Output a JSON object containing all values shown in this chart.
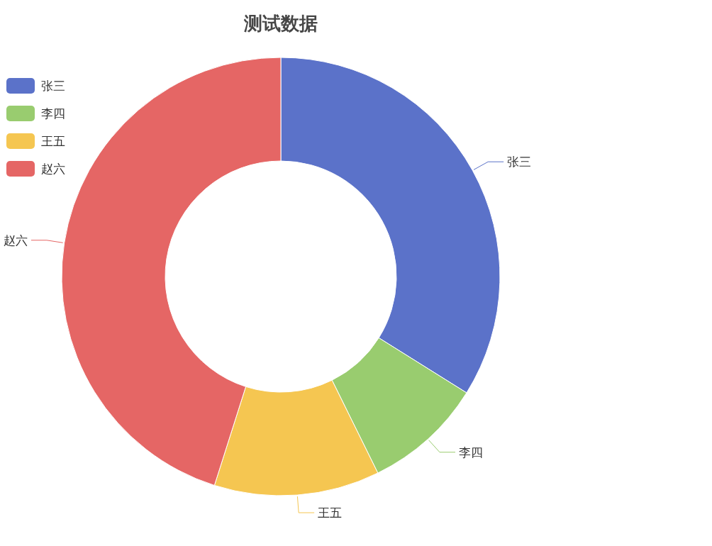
{
  "chart_data": {
    "type": "donut",
    "title": "测试数据",
    "categories": [
      "张三",
      "李四",
      "王五",
      "赵六"
    ],
    "values": [
      33.9,
      8.8,
      12.2,
      45.1
    ],
    "colors": [
      "#5b72c9",
      "#99cc6f",
      "#f5c651",
      "#e56665"
    ],
    "legend": "top left"
  }
}
